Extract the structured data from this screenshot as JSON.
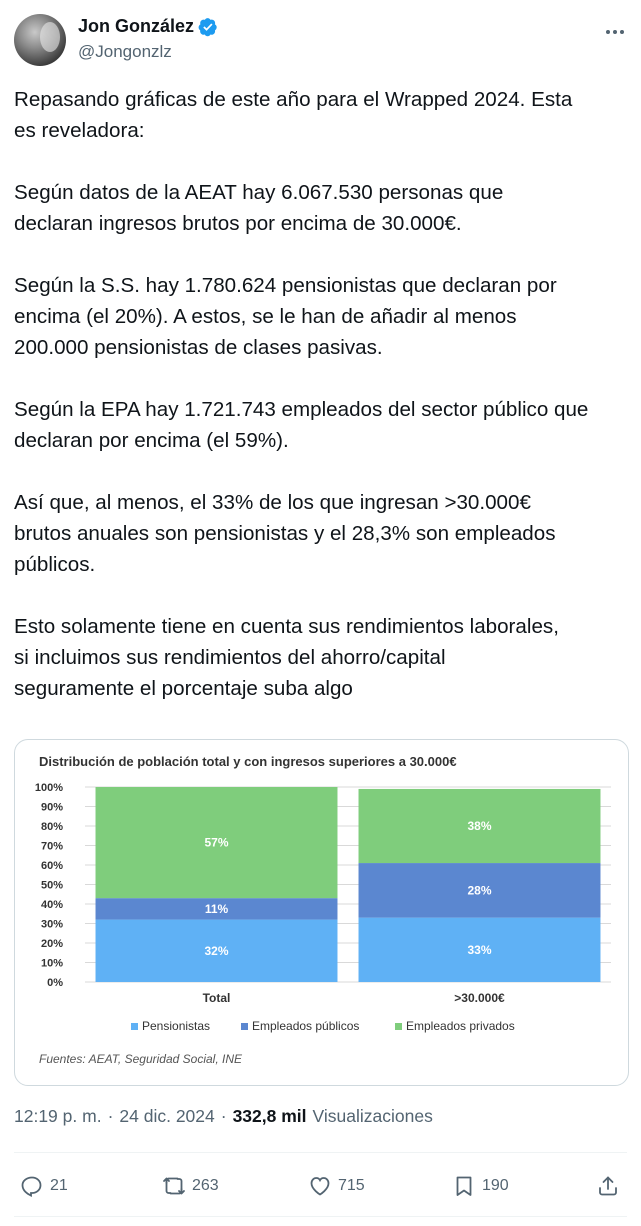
{
  "author": {
    "name": "Jon González",
    "handle": "@Jongonzlz"
  },
  "tweet": {
    "text": "Repasando gráficas de este año para el Wrapped 2024. Esta\nes reveladora:\n\nSegún datos de la AEAT hay 6.067.530 personas que\ndeclaran ingresos brutos por encima de 30.000€.\n\nSegún la S.S. hay 1.780.624 pensionistas que declaran por\nencima (el 20%). A estos, se le han de añadir al menos\n200.000 pensionistas de clases pasivas.\n\nSegún la EPA hay 1.721.743 empleados del sector público que\ndeclaran por encima (el 59%).\n\nAsí que, al menos, el 33% de los que ingresan >30.000€\nbrutos anuales son pensionistas y el 28,3% son empleados\npúblicos.\n\nEsto solamente tiene en cuenta sus rendimientos laborales,\nsi incluimos sus rendimientos del ahorro/capital\nseguramente el porcentaje suba algo"
  },
  "chart_data": {
    "type": "bar",
    "stacked": true,
    "title": "Distribución de población total y con ingresos superiores a 30.000€",
    "categories": [
      "Total",
      ">30.000€"
    ],
    "series": [
      {
        "name": "Pensionistas",
        "values": [
          32,
          33
        ],
        "labels": [
          "32%",
          "33%"
        ],
        "color": "#5fb1f5"
      },
      {
        "name": "Empleados públicos",
        "values": [
          11,
          28
        ],
        "labels": [
          "11%",
          "28%"
        ],
        "color": "#5b87d0"
      },
      {
        "name": "Empleados privados",
        "values": [
          57,
          38
        ],
        "labels": [
          "57%",
          "38%"
        ],
        "color": "#7fcd7c"
      }
    ],
    "ylim": [
      0,
      100
    ],
    "yticks": [
      "0%",
      "10%",
      "20%",
      "30%",
      "40%",
      "50%",
      "60%",
      "70%",
      "80%",
      "90%",
      "100%"
    ],
    "grid": true,
    "legend": "bottom",
    "source": "Fuentes: AEAT, Seguridad Social, INE"
  },
  "meta": {
    "time": "12:19 p. m.",
    "sep1": "·",
    "date": "24 dic. 2024",
    "sep2": "·",
    "views_count": "332,8 mil",
    "views_label": "Visualizaciones"
  },
  "actions": {
    "replies": "21",
    "reposts": "263",
    "likes": "715",
    "bookmarks": "190"
  },
  "icons": {
    "verified": "verified-badge-icon",
    "more": "more-icon",
    "reply": "reply-icon",
    "repost": "repost-icon",
    "like": "heart-icon",
    "bookmark": "bookmark-icon",
    "share": "share-icon"
  },
  "colors": {
    "verified": "#1d9bf0",
    "secondary_text": "#536471"
  }
}
